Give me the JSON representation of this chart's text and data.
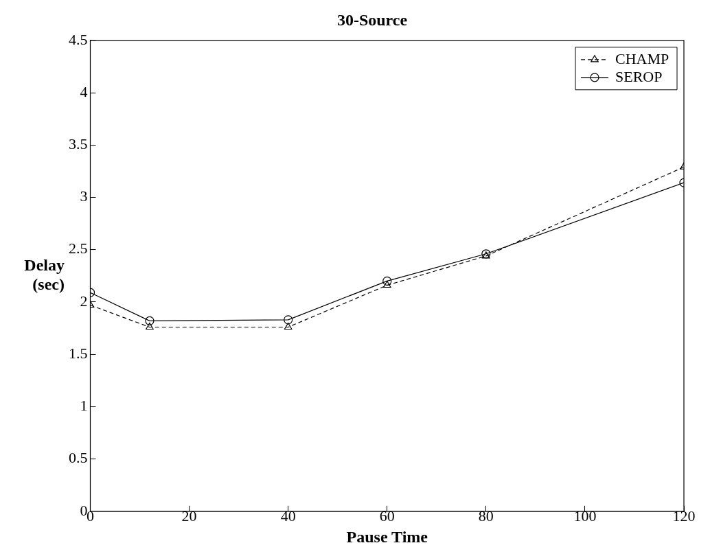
{
  "chart_data": {
    "type": "line",
    "title": "30-Source",
    "xlabel": "Pause Time",
    "ylabel": "Delay\n(sec)",
    "x": [
      0,
      12,
      40,
      60,
      80,
      120
    ],
    "series": [
      {
        "name": "CHAMP",
        "color": "#000000",
        "marker": "triangle",
        "line_style": "dashed",
        "values": [
          1.97,
          1.76,
          1.76,
          2.16,
          2.44,
          3.29
        ]
      },
      {
        "name": "SEROP",
        "color": "#000000",
        "marker": "circle",
        "line_style": "solid",
        "values": [
          2.09,
          1.82,
          1.83,
          2.2,
          2.46,
          3.14
        ]
      }
    ],
    "xlim": [
      0,
      120
    ],
    "xticks": [
      0,
      20,
      40,
      60,
      80,
      100,
      120
    ],
    "ylim": [
      0,
      4.5
    ],
    "yticks": [
      0,
      0.5,
      1,
      1.5,
      2,
      2.5,
      3,
      3.5,
      4,
      4.5
    ],
    "grid": false,
    "legend": "top right"
  }
}
